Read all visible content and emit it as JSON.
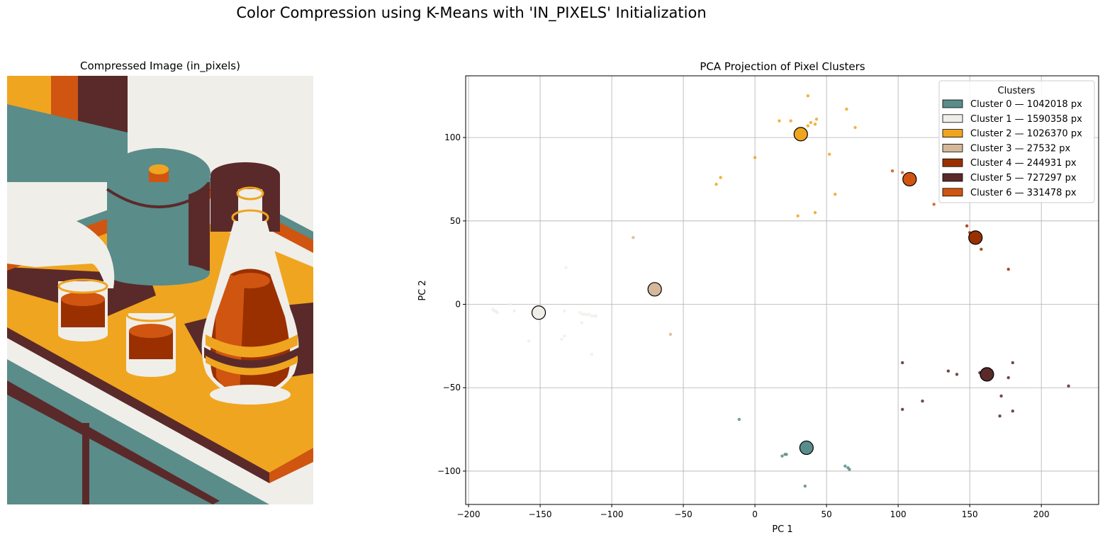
{
  "suptitle": "Color Compression using K-Means with 'IN_PIXELS' Initialization",
  "image_panel": {
    "title": "Compressed Image (in_pixels)",
    "palette": {
      "teal": "#5a8c8a",
      "cream": "#f0eee9",
      "yellow": "#f0a520",
      "beige": "#d4b899",
      "rust": "#9a3000",
      "maroon": "#5a2a2a",
      "orange": "#d05510"
    }
  },
  "chart_data": {
    "type": "scatter",
    "title": "PCA Projection of Pixel Clusters",
    "xlabel": "PC 1",
    "ylabel": "PC 2",
    "xlim": [
      -202,
      240
    ],
    "ylim": [
      -120,
      137
    ],
    "xticks": [
      -200,
      -150,
      -100,
      -50,
      0,
      50,
      100,
      150,
      200
    ],
    "yticks": [
      -100,
      -50,
      0,
      50,
      100
    ],
    "grid": true,
    "legend": {
      "title": "Clusters",
      "placement": "top-right",
      "entries": [
        "Cluster 0 — 1042018 px",
        "Cluster 1 — 1590358 px",
        "Cluster 2 — 1026370 px",
        "Cluster 3 — 27532 px",
        "Cluster 4 — 244931 px",
        "Cluster 5 — 727297 px",
        "Cluster 6 — 331478 px"
      ]
    },
    "clusters": [
      {
        "color": "#5a8c8a",
        "centroid": [
          36,
          -86
        ],
        "points": [
          [
            -11,
            -69
          ],
          [
            19,
            -91
          ],
          [
            21,
            -90
          ],
          [
            22,
            -90
          ],
          [
            63,
            -97
          ],
          [
            65,
            -98
          ],
          [
            66,
            -99
          ],
          [
            35,
            -109
          ]
        ]
      },
      {
        "color": "#f0eee9",
        "centroid": [
          -151,
          -5
        ],
        "points": [
          [
            -183,
            -3
          ],
          [
            -182,
            -4
          ],
          [
            -181,
            -4
          ],
          [
            -180,
            -5
          ],
          [
            -171,
            0
          ],
          [
            -168,
            -4
          ],
          [
            -158,
            -22
          ],
          [
            -135,
            -21
          ],
          [
            -133,
            -19
          ],
          [
            -133,
            -4
          ],
          [
            -132,
            22
          ],
          [
            -122,
            -5
          ],
          [
            -121,
            -11
          ],
          [
            -120,
            -6
          ],
          [
            -118,
            -6
          ],
          [
            -116,
            -6
          ],
          [
            -114,
            -7
          ],
          [
            -112,
            -7
          ],
          [
            -111,
            -7
          ],
          [
            -114,
            -30
          ]
        ]
      },
      {
        "color": "#f0a520",
        "centroid": [
          32,
          102
        ],
        "points": [
          [
            17,
            110
          ],
          [
            25,
            110
          ],
          [
            37,
            125
          ],
          [
            37,
            107
          ],
          [
            39,
            109
          ],
          [
            42,
            108
          ],
          [
            43,
            111
          ],
          [
            64,
            117
          ],
          [
            70,
            106
          ],
          [
            0,
            88
          ],
          [
            -24,
            76
          ],
          [
            -27,
            72
          ],
          [
            52,
            90
          ],
          [
            56,
            66
          ],
          [
            30,
            53
          ],
          [
            42,
            55
          ]
        ]
      },
      {
        "color": "#d4b899",
        "centroid": [
          -70,
          9
        ],
        "points": [
          [
            -59,
            -18
          ]
        ]
      },
      {
        "color": "#9a3000",
        "centroid": [
          154,
          40
        ],
        "points": [
          [
            148,
            47
          ],
          [
            150,
            43
          ],
          [
            157,
            42
          ],
          [
            158,
            33
          ],
          [
            177,
            21
          ]
        ]
      },
      {
        "color": "#5a2a2a",
        "centroid": [
          162,
          -42
        ],
        "points": [
          [
            103,
            -35
          ],
          [
            103,
            -63
          ],
          [
            117,
            -58
          ],
          [
            135,
            -40
          ],
          [
            141,
            -42
          ],
          [
            157,
            -41
          ],
          [
            172,
            -55
          ],
          [
            171,
            -67
          ],
          [
            177,
            -44
          ],
          [
            180,
            -35
          ],
          [
            180,
            -64
          ],
          [
            219,
            -49
          ]
        ]
      },
      {
        "color": "#d05510",
        "centroid": [
          108,
          75
        ],
        "points": [
          [
            96,
            80
          ],
          [
            103,
            79
          ],
          [
            125,
            60
          ]
        ]
      }
    ],
    "extra_points": [
      {
        "color": "#d4b899",
        "xy": [
          -85,
          40
        ]
      }
    ]
  }
}
